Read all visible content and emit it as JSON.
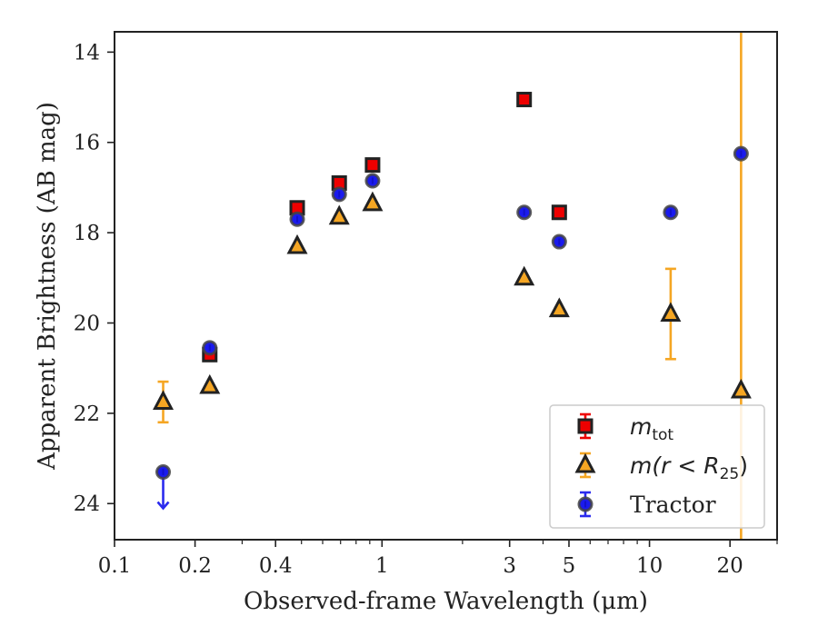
{
  "chart_data": {
    "type": "scatter",
    "xlabel": "Observed-frame Wavelength (μm)",
    "ylabel": "Apparent Brightness (AB mag)",
    "xscale": "log",
    "xlim": [
      0.1,
      30
    ],
    "ylim": [
      24.8,
      13.55
    ],
    "y_inverted": true,
    "x_ticks": [
      {
        "value": 0.1,
        "label": "0.1"
      },
      {
        "value": 0.2,
        "label": "0.2"
      },
      {
        "value": 0.4,
        "label": "0.4"
      },
      {
        "value": 1,
        "label": "1"
      },
      {
        "value": 3,
        "label": "3"
      },
      {
        "value": 5,
        "label": "5"
      },
      {
        "value": 10,
        "label": "10"
      },
      {
        "value": 20,
        "label": "20"
      }
    ],
    "x_minor_ticks": [
      0.3,
      0.5,
      0.6,
      0.7,
      0.8,
      0.9,
      2,
      4,
      6,
      7,
      8,
      9,
      30
    ],
    "y_ticks": [
      {
        "value": 14,
        "label": "14"
      },
      {
        "value": 16,
        "label": "16"
      },
      {
        "value": 18,
        "label": "18"
      },
      {
        "value": 20,
        "label": "20"
      },
      {
        "value": 22,
        "label": "22"
      },
      {
        "value": 24,
        "label": "24"
      }
    ],
    "grid": false,
    "legend_position": "lower-right",
    "series": [
      {
        "key": "mtot",
        "legend_main": "m",
        "legend_sub": "tot",
        "legend_suffix": "",
        "marker": "square",
        "color": "#ee0000",
        "edge_color": "#222222",
        "error_color": "#ee0000",
        "points": [
          {
            "x": 0.227,
            "y": 20.7
          },
          {
            "x": 0.482,
            "y": 17.45
          },
          {
            "x": 0.692,
            "y": 16.9
          },
          {
            "x": 0.922,
            "y": 16.5
          },
          {
            "x": 3.4,
            "y": 15.05
          },
          {
            "x": 4.6,
            "y": 17.55
          }
        ]
      },
      {
        "key": "mr25",
        "legend_main": "m(r < R",
        "legend_sub": "25",
        "legend_suffix": ")",
        "marker": "triangle",
        "color": "#f5a623",
        "edge_color": "#222222",
        "error_color": "#f5a623",
        "points": [
          {
            "x": 0.152,
            "y": 21.75,
            "err_low": 0.45,
            "err_high": 0.45
          },
          {
            "x": 0.227,
            "y": 21.4
          },
          {
            "x": 0.482,
            "y": 18.3
          },
          {
            "x": 0.692,
            "y": 17.65
          },
          {
            "x": 0.922,
            "y": 17.35
          },
          {
            "x": 3.4,
            "y": 19.0
          },
          {
            "x": 4.6,
            "y": 19.7
          },
          {
            "x": 12.0,
            "y": 19.8,
            "err_low": 1.0,
            "err_high": 1.0
          },
          {
            "x": 22.0,
            "y": 21.5,
            "err_low": 8.0,
            "err_high": 8.0
          }
        ]
      },
      {
        "key": "tractor",
        "legend_main": "Tractor",
        "legend_sub": "",
        "legend_suffix": "",
        "marker": "circle",
        "color": "#1a1aee",
        "edge_color": "#444444",
        "error_color": "#2a2aee",
        "points": [
          {
            "x": 0.152,
            "y": 23.3,
            "upper_limit": true
          },
          {
            "x": 0.227,
            "y": 20.55
          },
          {
            "x": 0.482,
            "y": 17.7
          },
          {
            "x": 0.692,
            "y": 17.15
          },
          {
            "x": 0.922,
            "y": 16.85
          },
          {
            "x": 3.4,
            "y": 17.55
          },
          {
            "x": 4.6,
            "y": 18.2
          },
          {
            "x": 12.0,
            "y": 17.55
          },
          {
            "x": 22.0,
            "y": 16.25
          }
        ]
      }
    ]
  }
}
